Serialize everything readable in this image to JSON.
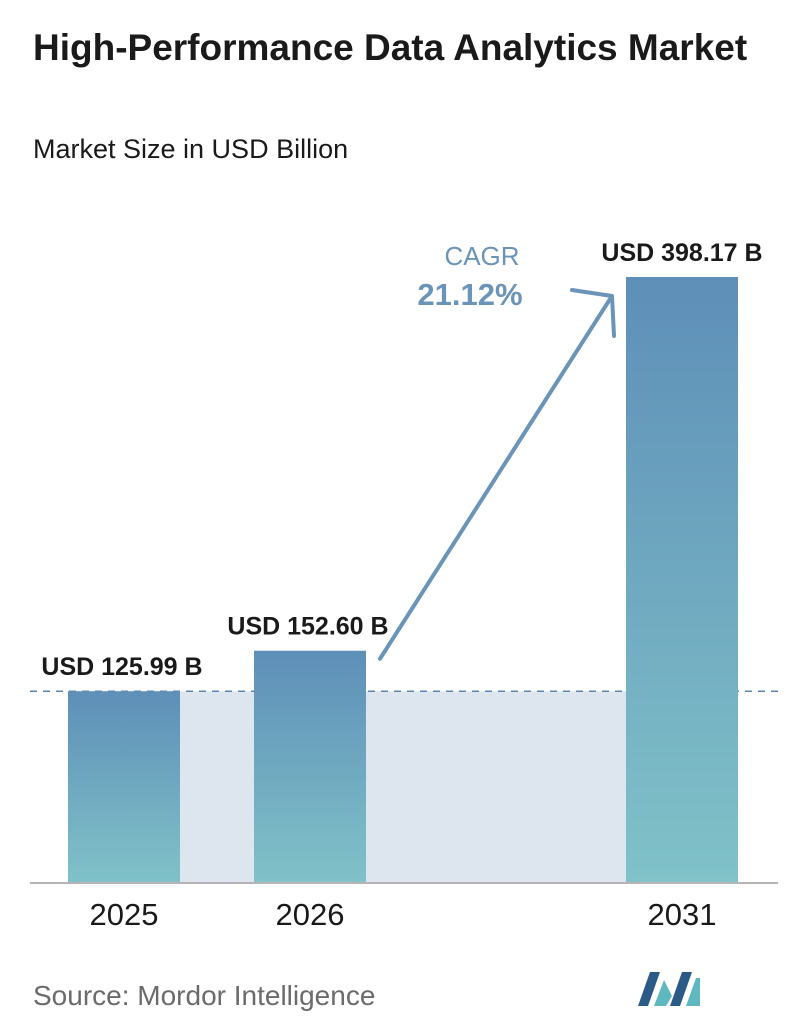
{
  "header": {
    "title": "High-Performance Data Analytics Market",
    "subtitle": "Market Size in USD Billion"
  },
  "chart_data": {
    "type": "bar",
    "categories": [
      "2025",
      "2026",
      "2031"
    ],
    "values": [
      125.99,
      152.6,
      398.17
    ],
    "data_labels": [
      "USD 125.99 B",
      "USD 152.60 B",
      "USD 398.17 B"
    ],
    "title": "High-Performance Data Analytics Market",
    "subtitle": "Market Size in USD Billion",
    "annotation": {
      "label": "CAGR",
      "value": "21.12%"
    },
    "ylim": [
      0,
      398.17
    ],
    "grid": false,
    "reference_line": 125.99
  },
  "footer": {
    "source": "Source:  Mordor Intelligence",
    "logo": "mordor-intelligence-logo"
  },
  "colors": {
    "bar_top": "#5e8fb8",
    "bar_bottom": "#80c2c8",
    "band": "#dde6ef",
    "arrow": "#6a94b8",
    "cagr_text": "#6a94b8",
    "logo_dark": "#2a5a86",
    "logo_light": "#5fb8bf"
  }
}
